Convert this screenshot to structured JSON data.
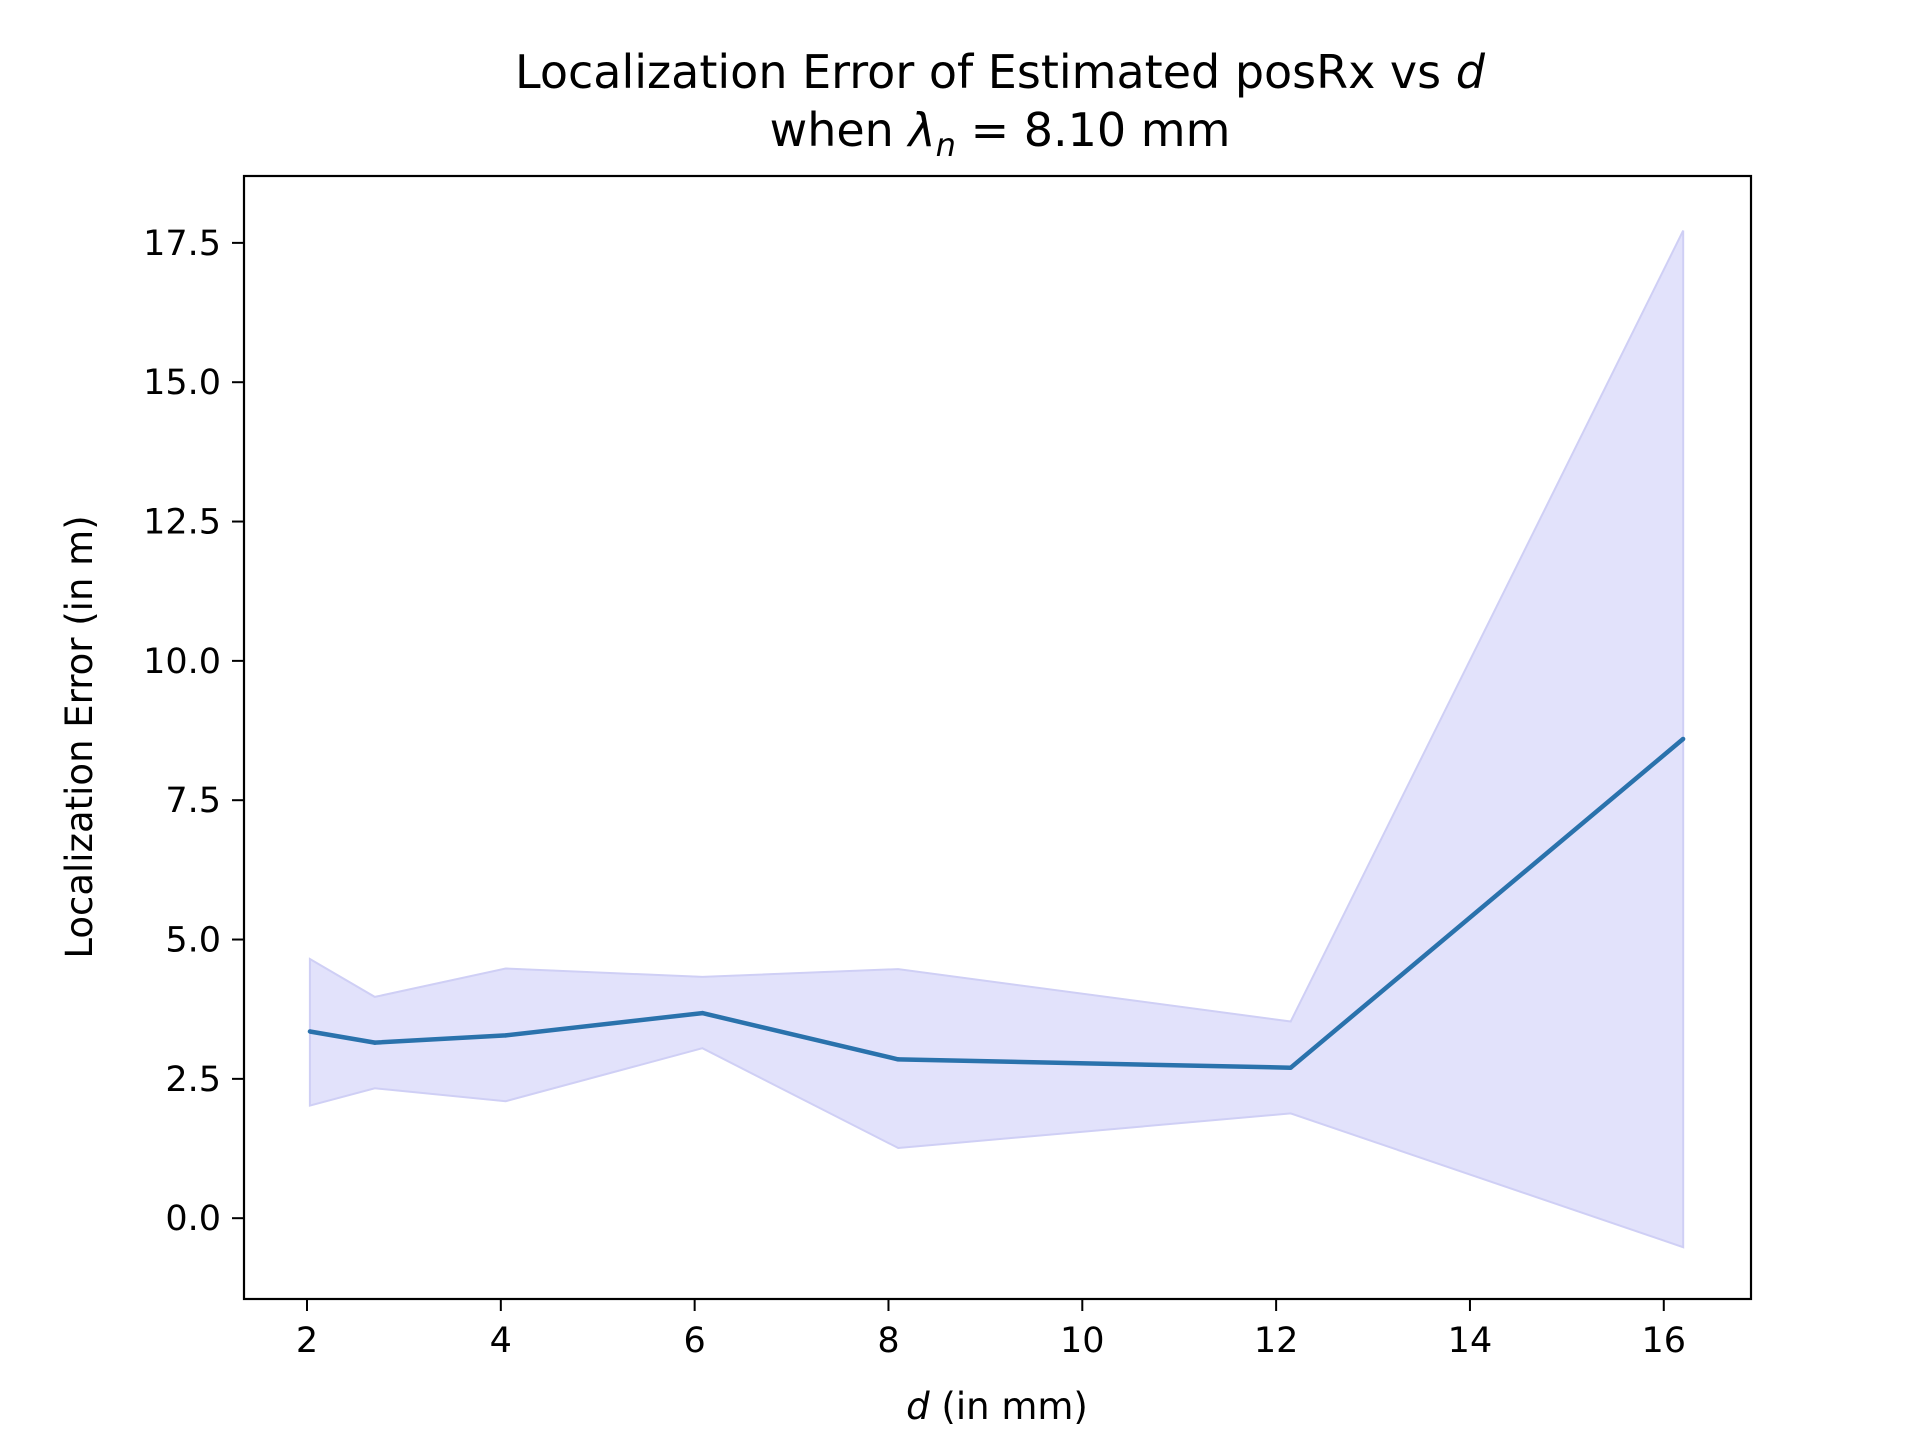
{
  "chart_data": {
    "type": "line",
    "title": {
      "line1_prefix": "Localization Error of Estimated posRx vs ",
      "line1_var": "d",
      "line2_prefix": "when ",
      "line2_symbol": "λ",
      "line2_subscript": "n",
      "line2_suffix": " = 8.10 mm"
    },
    "xlabel": {
      "var": "d",
      "text": " (in mm)"
    },
    "ylabel": "Localization Error (in m)",
    "xlim": [
      1.35,
      16.9
    ],
    "ylim": [
      -1.45,
      18.7
    ],
    "xticks": [
      2,
      4,
      6,
      8,
      10,
      12,
      14,
      16
    ],
    "xtick_labels": [
      "2",
      "4",
      "6",
      "8",
      "10",
      "12",
      "14",
      "16"
    ],
    "yticks": [
      0.0,
      2.5,
      5.0,
      7.5,
      10.0,
      12.5,
      15.0,
      17.5
    ],
    "ytick_labels": [
      "0.0",
      "2.5",
      "5.0",
      "7.5",
      "10.0",
      "12.5",
      "15.0",
      "17.5"
    ],
    "series": [
      {
        "x": [
          2.03,
          2.7,
          4.05,
          6.08,
          8.1,
          12.15,
          16.2
        ],
        "values": [
          3.35,
          3.15,
          3.28,
          3.68,
          2.85,
          2.7,
          8.6
        ],
        "lower": [
          2.02,
          2.33,
          2.1,
          3.05,
          1.26,
          1.88,
          -0.52
        ],
        "upper": [
          4.65,
          3.97,
          4.48,
          4.33,
          4.47,
          3.53,
          17.72
        ]
      }
    ],
    "colors": {
      "line": "#2a72ac",
      "band_fill": "#e2e2fb",
      "band_edge": "#cfcff5"
    },
    "grid": false,
    "legend": "none"
  }
}
